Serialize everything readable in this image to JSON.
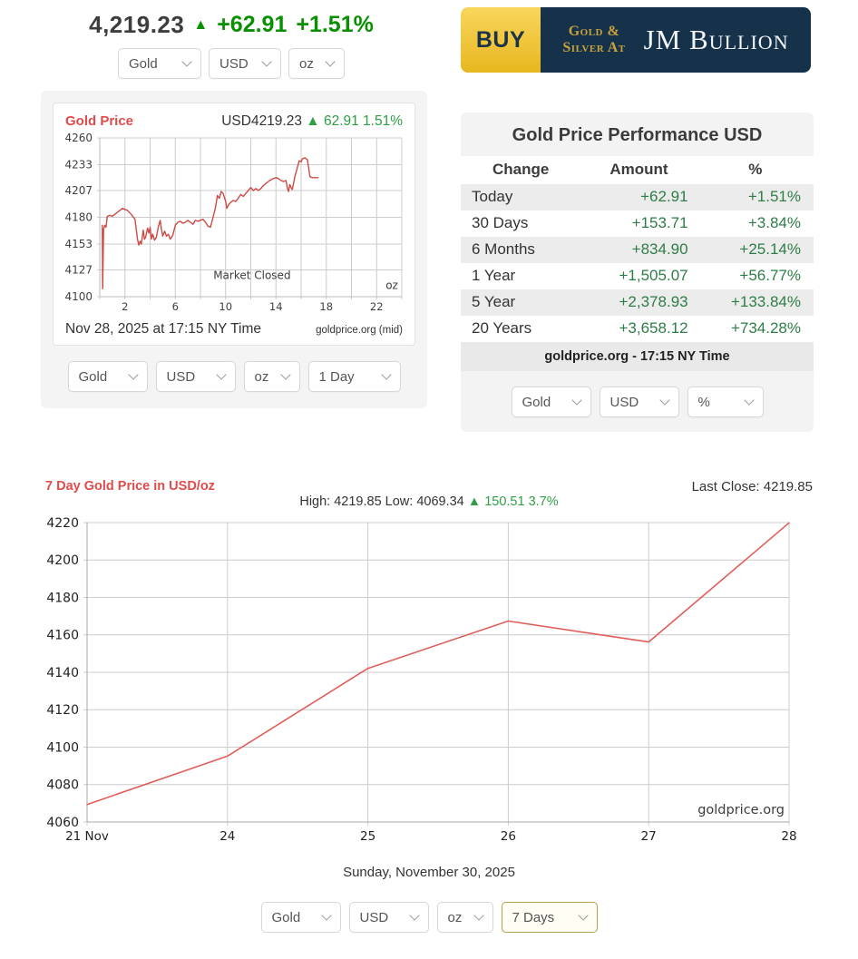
{
  "header": {
    "price": "4,219.23",
    "up_arrow": "▲",
    "change_amount": "+62.91",
    "change_pct": "+1.51%",
    "selects": {
      "metal": "Gold",
      "currency": "USD",
      "unit": "oz"
    }
  },
  "banner": {
    "buy_label": "BUY",
    "tagline_line1": "Gold &",
    "tagline_line2": "Silver At",
    "brand": "JM Bullion"
  },
  "intraday_panel": {
    "title": "Gold Price",
    "quote": "USD4219.23",
    "up_arrow": "▲",
    "change": "62.91 1.51%",
    "footer_left": "Nov 28, 2025 at 17:15 NY Time",
    "footer_right": "goldprice.org (mid)",
    "selects": {
      "metal": "Gold",
      "currency": "USD",
      "unit": "oz",
      "period": "1 Day"
    }
  },
  "performance": {
    "title": "Gold Price Performance USD",
    "columns": [
      "Change",
      "Amount",
      "%"
    ],
    "rows": [
      {
        "label": "Today",
        "amount": "+62.91",
        "pct": "+1.51%"
      },
      {
        "label": "30 Days",
        "amount": "+153.71",
        "pct": "+3.84%"
      },
      {
        "label": "6 Months",
        "amount": "+834.90",
        "pct": "+25.14%"
      },
      {
        "label": "1 Year",
        "amount": "+1,505.07",
        "pct": "+56.77%"
      },
      {
        "label": "5 Year",
        "amount": "+2,378.93",
        "pct": "+133.84%"
      },
      {
        "label": "20 Years",
        "amount": "+3,658.12",
        "pct": "+734.28%"
      }
    ],
    "footer": "goldprice.org - 17:15 NY Time",
    "selects": {
      "metal": "Gold",
      "currency": "USD",
      "display": "%"
    }
  },
  "bottom": {
    "title": "7 Day Gold Price in USD/oz",
    "last_close": "Last Close: 4219.85",
    "high_low": "High: 4219.85 Low: 4069.34",
    "up_arrow": "▲",
    "gain": "150.51 3.7%",
    "date_caption": "Sunday, November 30, 2025",
    "selects": {
      "metal": "Gold",
      "currency": "USD",
      "unit": "oz",
      "period": "7 Days"
    }
  },
  "colors": {
    "header_green": "#089000",
    "table_green": "#2e7d46",
    "chart_green": "#2f9e44",
    "red_title": "#e04b4b",
    "grid": "#cccccc",
    "banner_navy": "#16324a",
    "banner_gold": "#c9a23c"
  },
  "chart_data": [
    {
      "type": "line",
      "title": "Gold Price (1 Day, Nov 28, 2025, USD/oz)",
      "ylim": [
        4100,
        4260
      ],
      "yticks": [
        4100,
        4127,
        4153,
        4180,
        4207,
        4233,
        4260
      ],
      "xlim": [
        0,
        24
      ],
      "grid_step_x": 2,
      "xtick_labels": [
        "2",
        "6",
        "10",
        "14",
        "18",
        "22"
      ],
      "xtick_pos": [
        2,
        6,
        10,
        14,
        18,
        22
      ],
      "line_color": "#cd4a45",
      "grid_color": "#cccccc",
      "annotations": [
        {
          "x": 12.1,
          "y": 4118,
          "text": "Market Closed",
          "anchor": "middle"
        },
        {
          "x": 23.7,
          "y": 4108,
          "text": "oz",
          "anchor": "end"
        }
      ],
      "points": [
        [
          0.2,
          4172
        ],
        [
          0.23,
          4108
        ],
        [
          0.3,
          4168
        ],
        [
          0.4,
          4172
        ],
        [
          0.5,
          4170
        ],
        [
          0.6,
          4181
        ],
        [
          0.8,
          4182
        ],
        [
          1.0,
          4181
        ],
        [
          1.2,
          4183
        ],
        [
          1.5,
          4186
        ],
        [
          1.8,
          4189
        ],
        [
          2.0,
          4188
        ],
        [
          2.2,
          4187
        ],
        [
          2.5,
          4183
        ],
        [
          2.8,
          4178
        ],
        [
          3.0,
          4158
        ],
        [
          3.1,
          4152
        ],
        [
          3.2,
          4156
        ],
        [
          3.3,
          4153
        ],
        [
          3.45,
          4167
        ],
        [
          3.55,
          4158
        ],
        [
          3.65,
          4160
        ],
        [
          3.8,
          4169
        ],
        [
          3.9,
          4164
        ],
        [
          4.0,
          4170
        ],
        [
          4.1,
          4158
        ],
        [
          4.2,
          4163
        ],
        [
          4.35,
          4157
        ],
        [
          4.5,
          4160
        ],
        [
          4.65,
          4170
        ],
        [
          4.8,
          4177
        ],
        [
          4.9,
          4168
        ],
        [
          5.0,
          4161
        ],
        [
          5.15,
          4166
        ],
        [
          5.3,
          4161
        ],
        [
          5.45,
          4163
        ],
        [
          5.6,
          4158
        ],
        [
          5.8,
          4162
        ],
        [
          6.0,
          4172
        ],
        [
          6.2,
          4175
        ],
        [
          6.4,
          4176
        ],
        [
          6.6,
          4174
        ],
        [
          6.8,
          4175
        ],
        [
          7.0,
          4177
        ],
        [
          7.2,
          4175
        ],
        [
          7.4,
          4173
        ],
        [
          7.6,
          4177
        ],
        [
          7.8,
          4176
        ],
        [
          8.0,
          4177
        ],
        [
          8.2,
          4178
        ],
        [
          8.4,
          4175
        ],
        [
          8.6,
          4171
        ],
        [
          8.8,
          4170
        ],
        [
          9.0,
          4180
        ],
        [
          9.2,
          4190
        ],
        [
          9.35,
          4202
        ],
        [
          9.5,
          4199
        ],
        [
          9.65,
          4206
        ],
        [
          9.8,
          4204
        ],
        [
          10.0,
          4196
        ],
        [
          10.1,
          4189
        ],
        [
          10.25,
          4193
        ],
        [
          10.4,
          4195
        ],
        [
          10.6,
          4197
        ],
        [
          10.8,
          4196
        ],
        [
          11.0,
          4199
        ],
        [
          11.2,
          4203
        ],
        [
          11.4,
          4201
        ],
        [
          11.6,
          4204
        ],
        [
          11.8,
          4207
        ],
        [
          12.0,
          4210
        ],
        [
          12.2,
          4207
        ],
        [
          12.4,
          4209
        ],
        [
          12.6,
          4207
        ],
        [
          12.8,
          4209
        ],
        [
          13.0,
          4212
        ],
        [
          13.2,
          4214
        ],
        [
          13.5,
          4217
        ],
        [
          13.8,
          4219
        ],
        [
          14.0,
          4220
        ],
        [
          14.2,
          4219
        ],
        [
          14.4,
          4217
        ],
        [
          14.6,
          4216
        ],
        [
          14.8,
          4217
        ],
        [
          14.9,
          4210
        ],
        [
          15.0,
          4206
        ],
        [
          15.1,
          4213
        ],
        [
          15.2,
          4210
        ],
        [
          15.3,
          4208
        ],
        [
          15.5,
          4221
        ],
        [
          15.7,
          4230
        ],
        [
          15.85,
          4237
        ],
        [
          16.0,
          4236
        ],
        [
          16.1,
          4239
        ],
        [
          16.3,
          4240
        ],
        [
          16.5,
          4238
        ],
        [
          16.6,
          4230
        ],
        [
          16.7,
          4221
        ],
        [
          16.9,
          4220
        ],
        [
          17.1,
          4220
        ],
        [
          17.35,
          4220
        ]
      ]
    },
    {
      "type": "line",
      "title": "7 Day Gold Price in USD/oz",
      "ylim": [
        4060,
        4220
      ],
      "yticks": [
        4060,
        4080,
        4100,
        4120,
        4140,
        4160,
        4180,
        4200,
        4220
      ],
      "x_categories": [
        "21 Nov",
        "24",
        "25",
        "26",
        "27",
        "28"
      ],
      "values": [
        4069.34,
        4095.2,
        4142.1,
        4167.4,
        4156.2,
        4219.85
      ],
      "high": 4219.85,
      "low": 4069.34,
      "change": 150.51,
      "change_pct": 3.7,
      "last_close": 4219.85,
      "line_color": "#e05e5a",
      "grid_color": "#cccccc",
      "watermark": "goldprice.org"
    }
  ]
}
